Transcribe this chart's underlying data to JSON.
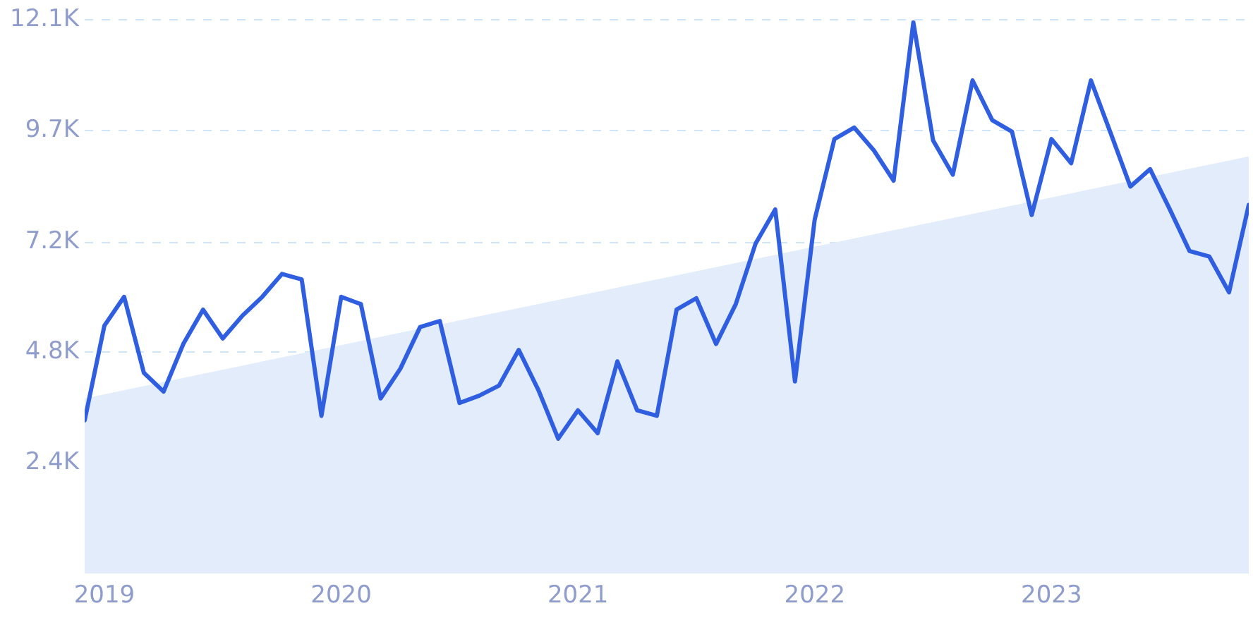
{
  "chart_data": {
    "type": "line",
    "x": [
      "2018-12",
      "2019-01",
      "2019-02",
      "2019-03",
      "2019-04",
      "2019-05",
      "2019-06",
      "2019-07",
      "2019-08",
      "2019-09",
      "2019-10",
      "2019-11",
      "2019-12",
      "2020-01",
      "2020-02",
      "2020-03",
      "2020-04",
      "2020-05",
      "2020-06",
      "2020-07",
      "2020-08",
      "2020-09",
      "2020-10",
      "2020-11",
      "2020-12",
      "2021-01",
      "2021-02",
      "2021-03",
      "2021-04",
      "2021-05",
      "2021-06",
      "2021-07",
      "2021-08",
      "2021-09",
      "2021-10",
      "2021-11",
      "2021-12",
      "2022-01",
      "2022-02",
      "2022-03",
      "2022-04",
      "2022-05",
      "2022-06",
      "2022-07",
      "2022-08",
      "2022-09",
      "2022-10",
      "2022-11",
      "2022-12",
      "2023-01",
      "2023-02",
      "2023-03",
      "2023-04",
      "2023-05",
      "2023-06",
      "2023-07",
      "2023-08",
      "2023-09",
      "2023-10",
      "2023-11"
    ],
    "series": [
      {
        "type": "area",
        "color": "#e2ecfb",
        "x": [
          "2018-12",
          "2023-11"
        ],
        "values": [
          3830,
          9120
        ]
      },
      {
        "color": "#2f5fe0",
        "values": [
          3350,
          5420,
          6050,
          4390,
          3980,
          5020,
          5770,
          5140,
          5640,
          6050,
          6550,
          6430,
          3450,
          6050,
          5890,
          3830,
          4480,
          5390,
          5520,
          3730,
          3890,
          4110,
          4890,
          4010,
          2950,
          3570,
          3070,
          4640,
          3570,
          3450,
          5770,
          6020,
          5020,
          5890,
          7210,
          7960,
          4200,
          7740,
          9500,
          9750,
          9250,
          8590,
          12050,
          9470,
          8720,
          10780,
          9910,
          9660,
          7840,
          9500,
          8970,
          10780,
          9630,
          8460,
          8840,
          7960,
          7050,
          6930,
          6150,
          8060
        ]
      }
    ],
    "xlim": [
      "2018-12",
      "2023-11"
    ],
    "xticks": [
      {
        "value": "2019-01",
        "label": "2019"
      },
      {
        "value": "2020-01",
        "label": "2020"
      },
      {
        "value": "2021-01",
        "label": "2021"
      },
      {
        "value": "2022-01",
        "label": "2022"
      },
      {
        "value": "2023-01",
        "label": "2023"
      }
    ],
    "ylim": [
      0,
      12100
    ],
    "yticks": [
      {
        "value": 2420,
        "label": "2.4K"
      },
      {
        "value": 4840,
        "label": "4.8K"
      },
      {
        "value": 7240,
        "label": "7.2K"
      },
      {
        "value": 9680,
        "label": "9.7K"
      },
      {
        "value": 12100,
        "label": "12.1K"
      }
    ],
    "grid": "y",
    "legend": false,
    "marker": "none",
    "line_style": "solid"
  }
}
